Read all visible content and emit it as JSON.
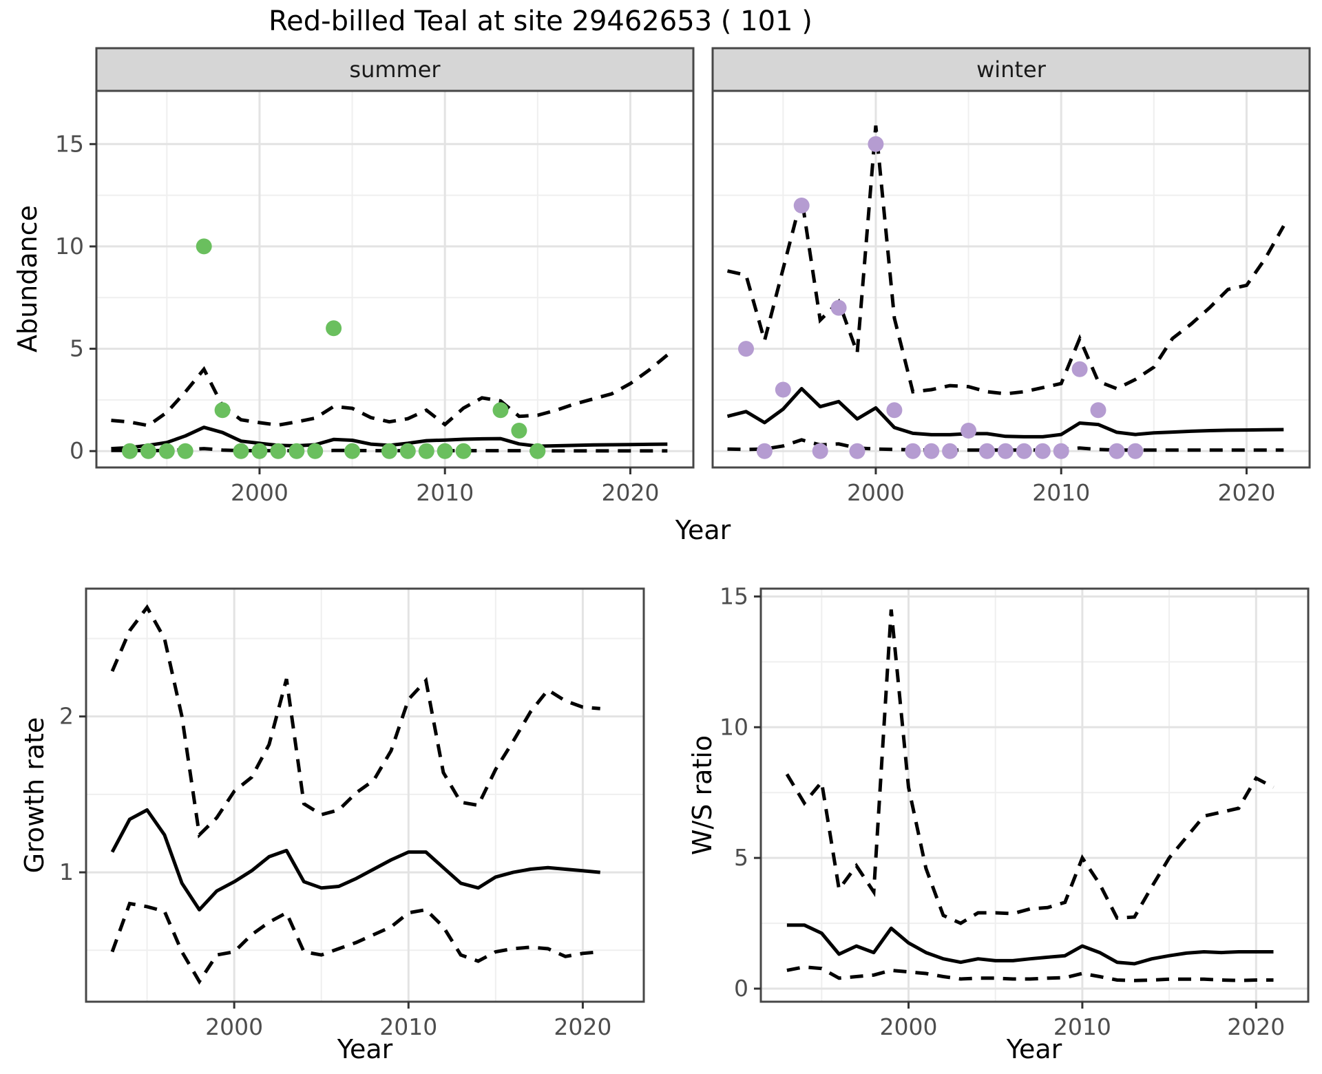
{
  "title": "Red-billed Teal at site 29462653 ( 101 )",
  "axis_titles": {
    "abundance": "Abundance",
    "year": "Year",
    "growth": "Growth rate",
    "ws": "W/S ratio"
  },
  "facets": {
    "summer": "summer",
    "winter": "winter"
  },
  "colors": {
    "summer_point": "#6abf5e",
    "winter_point": "#b59cd1",
    "line": "#000000",
    "grid_major": "#e3e3e3",
    "grid_minor": "#efefef",
    "panel_border": "#474747",
    "tick": "#333333",
    "tick_label": "#4d4d4d",
    "strip_bg": "#d6d6d6",
    "strip_text": "#1a1a1a",
    "background": "#ffffff"
  },
  "chart_data": [
    {
      "type": "scatter",
      "facet": "summer",
      "xlabel": "Year",
      "ylabel": "Abundance",
      "xticks": [
        2000,
        2010,
        2020
      ],
      "yticks": [
        0,
        5,
        10,
        15
      ],
      "xminor": [
        1995,
        2005,
        2015
      ],
      "yminor": [
        2.5,
        7.5,
        12.5
      ],
      "xlim": [
        1991.2,
        2023.4
      ],
      "ylim": [
        -0.8,
        17.6
      ],
      "points": {
        "years": [
          1993,
          1994,
          1995,
          1996,
          1997,
          1998,
          1999,
          2000,
          2001,
          2002,
          2003,
          2004,
          2005,
          2007,
          2008,
          2009,
          2010,
          2011,
          2013,
          2014,
          2015
        ],
        "values": [
          0,
          0,
          0,
          0,
          10,
          2,
          0,
          0,
          0,
          0,
          0,
          6,
          0,
          0,
          0,
          0,
          0,
          0,
          2,
          1,
          0
        ]
      },
      "fit": {
        "years": [
          1992,
          1993,
          1994,
          1995,
          1996,
          1997,
          1998,
          1999,
          2000,
          2001,
          2002,
          2003,
          2004,
          2005,
          2006,
          2007,
          2008,
          2009,
          2010,
          2011,
          2012,
          2013,
          2014,
          2015,
          2016,
          2017,
          2018,
          2019,
          2020,
          2021,
          2022
        ],
        "median": [
          0.12,
          0.17,
          0.28,
          0.42,
          0.74,
          1.16,
          0.91,
          0.49,
          0.38,
          0.28,
          0.26,
          0.31,
          0.57,
          0.53,
          0.34,
          0.28,
          0.38,
          0.51,
          0.54,
          0.58,
          0.6,
          0.61,
          0.35,
          0.24,
          0.26,
          0.28,
          0.3,
          0.31,
          0.32,
          0.33,
          0.34
        ],
        "upper": [
          1.5,
          1.42,
          1.25,
          1.89,
          2.89,
          4.0,
          2.21,
          1.53,
          1.39,
          1.27,
          1.43,
          1.61,
          2.18,
          2.09,
          1.64,
          1.43,
          1.58,
          2.0,
          1.3,
          2.1,
          2.6,
          2.45,
          1.7,
          1.75,
          2.0,
          2.3,
          2.55,
          2.8,
          3.3,
          3.95,
          4.7
        ],
        "lower": [
          0.03,
          0.03,
          0.02,
          0.03,
          0.06,
          0.12,
          0.05,
          0.02,
          0.02,
          0.02,
          0.02,
          0.02,
          0.03,
          0.03,
          0.02,
          0.02,
          0.02,
          0.02,
          0.02,
          0.02,
          0.02,
          0.02,
          0.02,
          0.01,
          0.01,
          0.01,
          0.01,
          0.01,
          0.01,
          0.01,
          0.01
        ]
      }
    },
    {
      "type": "scatter",
      "facet": "winter",
      "xlabel": "Year",
      "ylabel": "Abundance",
      "xticks": [
        2000,
        2010,
        2020
      ],
      "yticks": [
        0,
        5,
        10,
        15
      ],
      "xminor": [
        1995,
        2005,
        2015
      ],
      "yminor": [
        2.5,
        7.5,
        12.5
      ],
      "xlim": [
        1991.2,
        2023.4
      ],
      "ylim": [
        -0.8,
        17.6
      ],
      "points": {
        "years": [
          1993,
          1994,
          1995,
          1996,
          1997,
          1998,
          1999,
          2000,
          2001,
          2002,
          2003,
          2004,
          2005,
          2006,
          2007,
          2008,
          2009,
          2010,
          2011,
          2012,
          2013,
          2014
        ],
        "values": [
          5,
          0,
          3,
          12,
          0,
          7,
          0,
          15,
          2,
          0,
          0,
          0,
          1,
          0,
          0,
          0,
          0,
          0,
          4,
          2,
          0,
          0
        ]
      },
      "fit": {
        "years": [
          1992,
          1993,
          1994,
          1995,
          1996,
          1997,
          1998,
          1999,
          2000,
          2001,
          2002,
          2003,
          2004,
          2005,
          2006,
          2007,
          2008,
          2009,
          2010,
          2011,
          2012,
          2013,
          2014,
          2015,
          2016,
          2017,
          2018,
          2019,
          2020,
          2021,
          2022
        ],
        "median": [
          1.7,
          1.93,
          1.39,
          2.05,
          3.05,
          2.17,
          2.42,
          1.57,
          2.11,
          1.15,
          0.87,
          0.8,
          0.8,
          0.85,
          0.85,
          0.72,
          0.7,
          0.7,
          0.81,
          1.37,
          1.3,
          0.92,
          0.81,
          0.89,
          0.93,
          0.97,
          1.0,
          1.02,
          1.03,
          1.04,
          1.05
        ],
        "upper": [
          8.8,
          8.6,
          5.4,
          8.9,
          12.4,
          6.4,
          7.3,
          4.8,
          15.9,
          6.5,
          2.9,
          3.0,
          3.2,
          3.15,
          2.9,
          2.8,
          2.9,
          3.1,
          3.3,
          5.5,
          3.4,
          3.05,
          3.5,
          4.1,
          5.5,
          6.2,
          7.0,
          7.9,
          8.1,
          9.4,
          11.0
        ],
        "lower": [
          0.1,
          0.08,
          0.1,
          0.25,
          0.55,
          0.3,
          0.35,
          0.15,
          0.1,
          0.08,
          0.06,
          0.05,
          0.05,
          0.05,
          0.05,
          0.05,
          0.05,
          0.05,
          0.08,
          0.15,
          0.08,
          0.05,
          0.05,
          0.05,
          0.05,
          0.05,
          0.05,
          0.05,
          0.05,
          0.05,
          0.05
        ]
      }
    },
    {
      "type": "line",
      "facet": null,
      "xlabel": "Year",
      "ylabel": "Growth rate",
      "xticks": [
        2000,
        2010,
        2020
      ],
      "yticks": [
        1,
        2
      ],
      "xminor": [
        1995,
        2005,
        2015
      ],
      "yminor": [
        0.5,
        1.5,
        2.5
      ],
      "xlim": [
        1991.5,
        2023.5
      ],
      "ylim": [
        0.17,
        2.82
      ],
      "fit": {
        "years": [
          1993,
          1994,
          1995,
          1996,
          1997,
          1998,
          1999,
          2000,
          2001,
          2002,
          2003,
          2004,
          2005,
          2006,
          2007,
          2008,
          2009,
          2010,
          2011,
          2012,
          2013,
          2014,
          2015,
          2016,
          2017,
          2018,
          2019,
          2020,
          2021
        ],
        "median": [
          1.13,
          1.34,
          1.4,
          1.24,
          0.93,
          0.76,
          0.88,
          0.94,
          1.01,
          1.1,
          1.14,
          0.94,
          0.9,
          0.91,
          0.96,
          1.02,
          1.08,
          1.13,
          1.13,
          1.03,
          0.93,
          0.9,
          0.97,
          1.0,
          1.02,
          1.03,
          1.02,
          1.01,
          1.0
        ],
        "upper": [
          2.29,
          2.55,
          2.7,
          2.5,
          2.0,
          1.24,
          1.35,
          1.52,
          1.61,
          1.82,
          2.24,
          1.44,
          1.37,
          1.4,
          1.51,
          1.59,
          1.78,
          2.11,
          2.23,
          1.64,
          1.45,
          1.43,
          1.66,
          1.84,
          2.03,
          2.17,
          2.1,
          2.06,
          2.05
        ],
        "lower": [
          0.49,
          0.8,
          0.78,
          0.75,
          0.49,
          0.3,
          0.47,
          0.49,
          0.6,
          0.68,
          0.74,
          0.49,
          0.47,
          0.51,
          0.55,
          0.6,
          0.65,
          0.74,
          0.76,
          0.65,
          0.47,
          0.43,
          0.49,
          0.51,
          0.52,
          0.51,
          0.46,
          0.48,
          0.49
        ]
      }
    },
    {
      "type": "line",
      "facet": null,
      "xlabel": "Year",
      "ylabel": "W/S ratio",
      "xticks": [
        2000,
        2010,
        2020
      ],
      "yticks": [
        0,
        5,
        10,
        15
      ],
      "xminor": [
        1995,
        2005,
        2015
      ],
      "yminor": [
        2.5,
        7.5,
        12.5
      ],
      "xlim": [
        1991.5,
        2023.0
      ],
      "ylim": [
        -0.5,
        15.3
      ],
      "fit": {
        "years": [
          1993,
          1994,
          1995,
          1996,
          1997,
          1998,
          1999,
          2000,
          2001,
          2002,
          2003,
          2004,
          2005,
          2006,
          2007,
          2008,
          2009,
          2010,
          2011,
          2012,
          2013,
          2014,
          2015,
          2016,
          2017,
          2018,
          2019,
          2020,
          2021
        ],
        "median": [
          2.43,
          2.43,
          2.12,
          1.32,
          1.63,
          1.38,
          2.31,
          1.75,
          1.38,
          1.14,
          1.01,
          1.14,
          1.07,
          1.07,
          1.14,
          1.2,
          1.26,
          1.63,
          1.38,
          1.01,
          0.95,
          1.14,
          1.26,
          1.36,
          1.41,
          1.38,
          1.41,
          1.41,
          1.41
        ],
        "upper": [
          8.2,
          7.1,
          7.9,
          3.8,
          4.7,
          3.7,
          14.5,
          7.7,
          4.6,
          2.8,
          2.5,
          2.9,
          2.9,
          2.87,
          3.05,
          3.1,
          3.3,
          5.0,
          4.0,
          2.7,
          2.74,
          3.9,
          5.0,
          5.8,
          6.6,
          6.75,
          6.9,
          8.05,
          7.7
        ],
        "lower": [
          0.7,
          0.83,
          0.77,
          0.4,
          0.46,
          0.52,
          0.7,
          0.64,
          0.58,
          0.46,
          0.37,
          0.4,
          0.4,
          0.37,
          0.37,
          0.4,
          0.42,
          0.58,
          0.46,
          0.33,
          0.31,
          0.33,
          0.36,
          0.36,
          0.36,
          0.33,
          0.31,
          0.33,
          0.33
        ]
      }
    }
  ]
}
